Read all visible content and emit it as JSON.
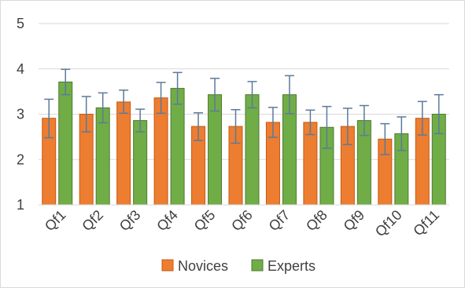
{
  "chart_data": {
    "type": "bar",
    "categories": [
      "Qf1",
      "Qf2",
      "Qf3",
      "Qf4",
      "Qf5",
      "Qf6",
      "Qf7",
      "Qf8",
      "Qf9",
      "Qf10",
      "Qf11"
    ],
    "series": [
      {
        "name": "Novices",
        "color": "#ED7D31",
        "edge_color": "#C55A11",
        "values": [
          2.91,
          3.0,
          3.27,
          3.36,
          2.73,
          2.73,
          2.82,
          2.82,
          2.73,
          2.45,
          2.91
        ],
        "error_low": [
          2.48,
          2.61,
          3.02,
          3.02,
          2.42,
          2.36,
          2.49,
          2.55,
          2.33,
          2.11,
          2.54
        ],
        "error_high": [
          3.33,
          3.39,
          3.53,
          3.7,
          3.03,
          3.1,
          3.15,
          3.09,
          3.13,
          2.79,
          3.28
        ]
      },
      {
        "name": "Experts",
        "color": "#70AD47",
        "edge_color": "#4E7A31",
        "values": [
          3.71,
          3.14,
          2.86,
          3.57,
          3.43,
          3.43,
          3.43,
          2.71,
          2.86,
          2.57,
          3.0
        ],
        "error_low": [
          3.43,
          2.81,
          2.61,
          3.22,
          3.07,
          3.14,
          3.01,
          2.25,
          2.53,
          2.2,
          2.57
        ],
        "error_high": [
          3.99,
          3.47,
          3.11,
          3.92,
          3.79,
          3.72,
          3.85,
          3.17,
          3.19,
          2.94,
          3.43
        ]
      }
    ],
    "yticks": [
      1,
      2,
      3,
      4,
      5
    ],
    "ylim": [
      1,
      5
    ],
    "grid": true,
    "legend_position": "bottom",
    "error_bar_color": "#5B7A9A",
    "grid_color": "#d9d9d9"
  }
}
